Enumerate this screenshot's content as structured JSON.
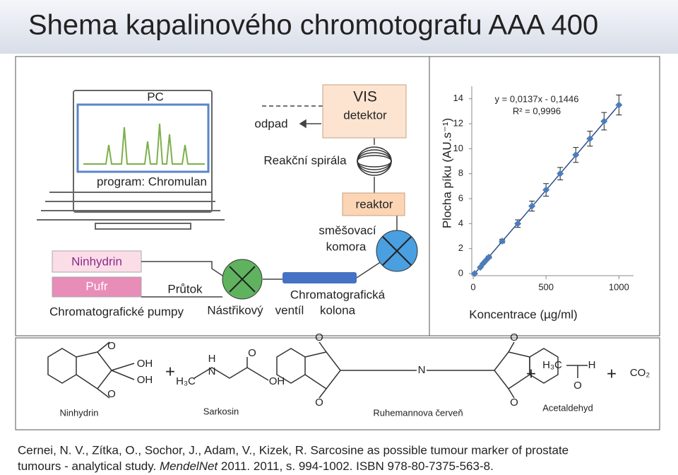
{
  "title": "Shema kapalinového chromotografu AAA 400",
  "diagram": {
    "pc": "PC",
    "program": "program: Chromulan",
    "odpad": "odpad",
    "vis": "VIS",
    "detektor": "detektor",
    "spirala": "Reakční spirála",
    "reaktor": "reaktor",
    "smesovaci": "směšovací",
    "komora": "komora",
    "ninhydrin": "Ninhydrin",
    "pufr": "Pufr",
    "prutok": "Průtok",
    "chromatograficka": "Chromatografická",
    "kolona": "kolona",
    "pumpy": "Chromatografické pumpy",
    "nastrikovy": "Nástřikový",
    "ventil": "ventíl"
  },
  "chart_data": {
    "type": "scatter",
    "ylabel": "Plocha píku (AU.s⁻¹)",
    "xlabel": "Koncentrace (µg/ml)",
    "annotations": [
      "y = 0,0137x - 0,1446",
      "R² = 0,9996"
    ],
    "x": [
      10,
      49,
      68,
      87,
      107,
      199,
      306,
      403,
      500,
      597,
      704,
      801,
      898,
      1000
    ],
    "series": [
      {
        "color": "#4a7ebb",
        "values": [
          0.0,
          0.5,
          0.8,
          1.05,
          1.3,
          2.6,
          4.0,
          5.4,
          6.7,
          8.0,
          9.5,
          10.8,
          12.2,
          13.5
        ],
        "errors": [
          0,
          0,
          0,
          0,
          0.1,
          0.15,
          0.3,
          0.4,
          0.5,
          0.5,
          0.6,
          0.6,
          0.7,
          0.8
        ]
      }
    ],
    "xlim": [
      0,
      1100
    ],
    "ylim": [
      0,
      15
    ],
    "xticks": [
      0,
      500,
      1000
    ],
    "yticks": [
      0,
      2,
      4,
      6,
      8,
      10,
      12,
      14
    ]
  },
  "reaction": {
    "labels": [
      "Ninhydrin",
      "Sarkosin",
      "Ruhemannova červeň",
      "Acetaldehyd"
    ],
    "atoms": [
      "O",
      "OH",
      "OH",
      "O",
      "+",
      "H",
      "N",
      "H₃C",
      "O",
      "OH",
      "O",
      "O",
      "N",
      "O",
      "O",
      "+",
      "H₃C",
      "H",
      "O",
      "+",
      "CO₂"
    ]
  },
  "citation": {
    "line1": "Cernei, N. V., Zítka, O., Sochor, J., Adam, V., Kizek, R. Sarcosine as possible tumour marker of prostate",
    "line2a": "tumours - analytical study. ",
    "journal": "MendelNet",
    "line2b": " 2011. 2011, s. 994-1002. ISBN 978-80-7375-563-8."
  }
}
